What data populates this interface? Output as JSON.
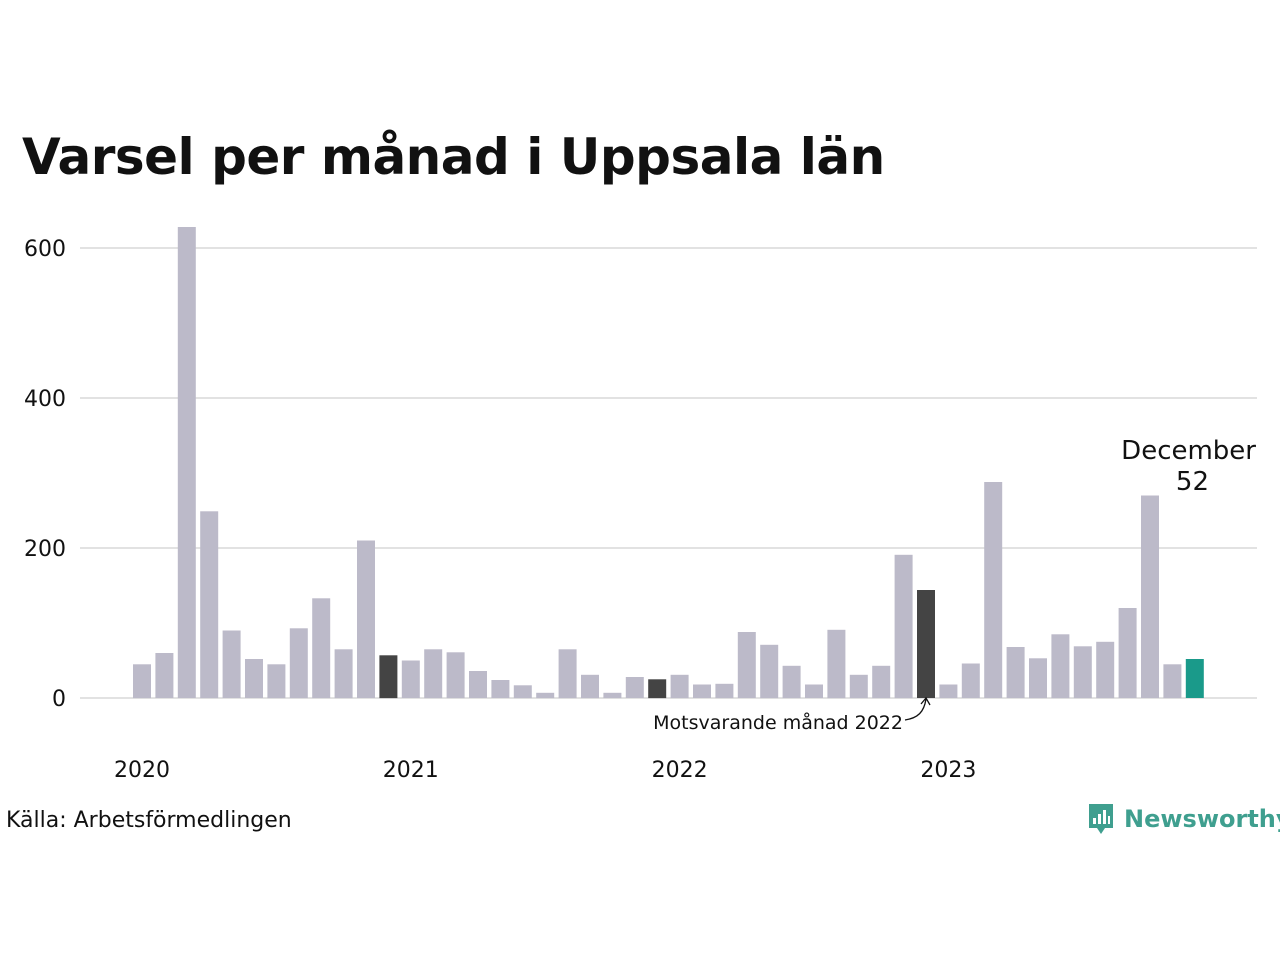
{
  "title": "Varsel per månad i Uppsala län",
  "source": "Källa: Arbetsförmedlingen",
  "brand": {
    "name": "Newsworthy"
  },
  "colors": {
    "bar": "#bcbac9",
    "comparison": "#444444",
    "current": "#1a9a8a",
    "grid": "#e2e2e2",
    "brand": "#3f9f8f"
  },
  "chart_data": {
    "type": "bar",
    "title": "Varsel per månad i Uppsala län",
    "xlabel": "",
    "ylabel": "",
    "ylim": [
      0,
      600
    ],
    "yticks": [
      0,
      200,
      400,
      600
    ],
    "grid": true,
    "x_tick_labels": [
      {
        "label": "2020",
        "index": 0
      },
      {
        "label": "2021",
        "index": 12
      },
      {
        "label": "2022",
        "index": 24
      },
      {
        "label": "2023",
        "index": 36
      }
    ],
    "categories": [
      "2020-01",
      "2020-02",
      "2020-03",
      "2020-04",
      "2020-05",
      "2020-06",
      "2020-07",
      "2020-08",
      "2020-09",
      "2020-10",
      "2020-11",
      "2020-12",
      "2021-01",
      "2021-02",
      "2021-03",
      "2021-04",
      "2021-05",
      "2021-06",
      "2021-07",
      "2021-08",
      "2021-09",
      "2021-10",
      "2021-11",
      "2021-12",
      "2022-01",
      "2022-02",
      "2022-03",
      "2022-04",
      "2022-05",
      "2022-06",
      "2022-07",
      "2022-08",
      "2022-09",
      "2022-10",
      "2022-11",
      "2022-12",
      "2023-01",
      "2023-02",
      "2023-03",
      "2023-04",
      "2023-05",
      "2023-06",
      "2023-07",
      "2023-08",
      "2023-09",
      "2023-10",
      "2023-11",
      "2023-12"
    ],
    "values": [
      45,
      60,
      628,
      249,
      90,
      52,
      45,
      93,
      133,
      65,
      210,
      57,
      50,
      65,
      61,
      36,
      24,
      17,
      7,
      65,
      31,
      7,
      28,
      25,
      31,
      18,
      19,
      88,
      71,
      43,
      18,
      91,
      31,
      43,
      191,
      144,
      18,
      46,
      288,
      68,
      53,
      85,
      69,
      75,
      120,
      270,
      45,
      52
    ],
    "highlight_comparison": [
      11,
      23,
      35
    ],
    "highlight_current": 47,
    "annotations": {
      "last_month_label": "December",
      "last_value_label": "52",
      "comparison_label": "Motsvarande månad 2022"
    }
  }
}
